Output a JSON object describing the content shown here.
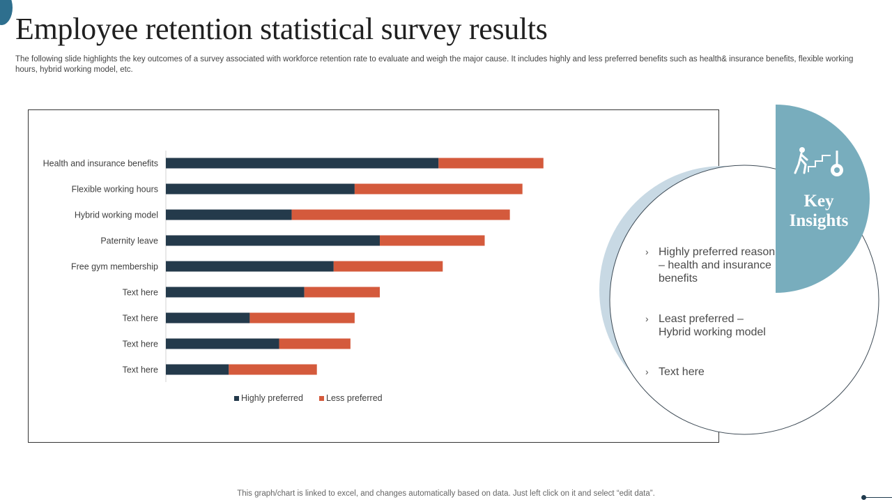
{
  "slide": {
    "title": "Employee retention statistical survey results",
    "subtitle": "The following slide highlights the key outcomes of a survey associated with workforce retention rate to evaluate and weigh the major cause. It includes highly and less preferred benefits such as health& insurance benefits, flexible working hours, hybrid working model, etc.",
    "footer_note": "This graph/chart is linked to excel,  and changes automatically based on data. Just left click on it and select “edit data”."
  },
  "chart_data": {
    "type": "bar",
    "orientation": "horizontal",
    "stacked": true,
    "categories": [
      "Health and insurance benefits",
      "Flexible working hours",
      "Hybrid working model",
      "Paternity leave",
      "Free gym membership",
      "Text here",
      "Text here",
      "Text here",
      "Text here"
    ],
    "series": [
      {
        "name": "Highly preferred",
        "color": "#243a4b",
        "values": [
          65,
          45,
          30,
          51,
          40,
          33,
          20,
          27,
          15
        ]
      },
      {
        "name": "Less preferred",
        "color": "#d45a3c",
        "values": [
          25,
          40,
          52,
          25,
          26,
          18,
          25,
          17,
          21
        ]
      }
    ],
    "xlim": [
      0,
      100
    ],
    "legend": "bottom",
    "grid": false
  },
  "insights": {
    "heading": "Key Insights",
    "icon": "stairs-goal-icon",
    "accent_color": "#78adbd",
    "items": [
      "Highly preferred reason – health and insurance benefits",
      "Least preferred – Hybrid working model",
      "Text here"
    ],
    "chevron": "›"
  }
}
